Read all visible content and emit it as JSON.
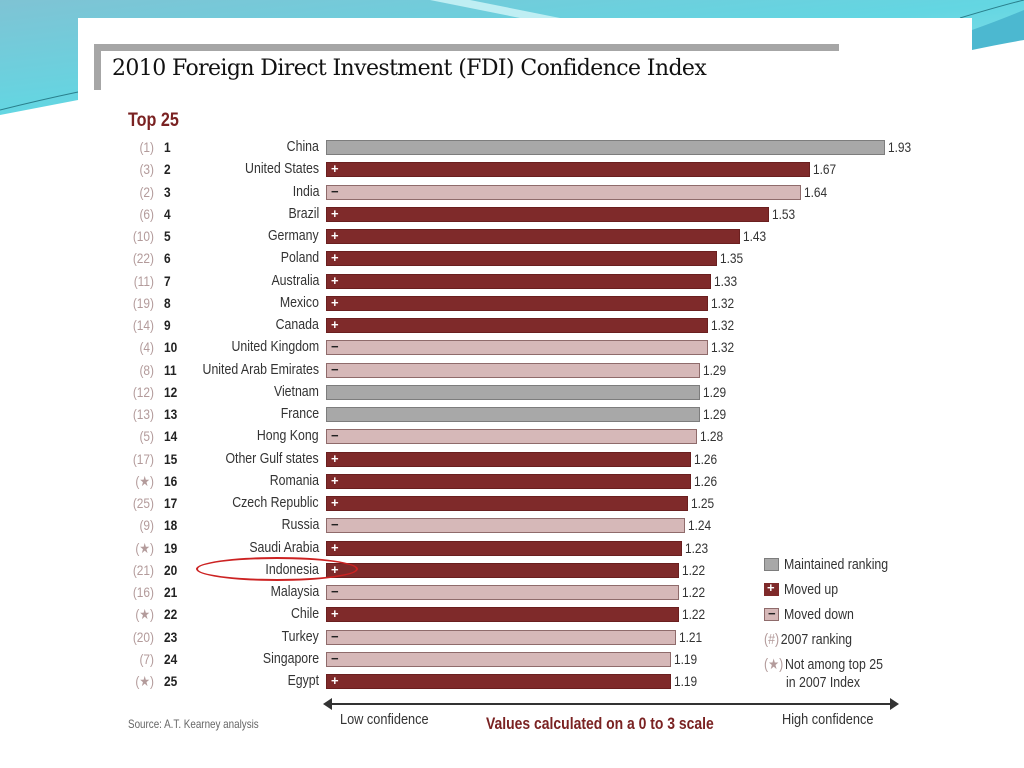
{
  "slide": {
    "title": "2010 Foreign Direct Investment (FDI) Confidence Index",
    "subtitle": "Top 25",
    "source": "Source: A.T. Kearney analysis",
    "colors": {
      "maintained": "#a8a8a8",
      "moved_up": "#7f2a2a",
      "moved_down": "#d6b8b8",
      "accent": "#7a2222",
      "highlight": "#cc2222",
      "background_teal": "#6fd3e0"
    }
  },
  "chart_data": {
    "type": "bar",
    "orientation": "horizontal",
    "title": "2010 Foreign Direct Investment (FDI) Confidence Index",
    "subtitle": "Top 25",
    "xlabel": "Values calculated on a 0 to 3 scale",
    "axis_left_label": "Low confidence",
    "axis_right_label": "High confidence",
    "xlim": [
      0,
      3
    ],
    "grid": false,
    "legend_position": "bottom-right",
    "highlighted_category": "Indonesia",
    "rows": [
      {
        "rank": "1",
        "prev": "(1)",
        "country": "China",
        "value": 1.93,
        "status": "maintained"
      },
      {
        "rank": "2",
        "prev": "(3)",
        "country": "United States",
        "value": 1.67,
        "status": "up"
      },
      {
        "rank": "3",
        "prev": "(2)",
        "country": "India",
        "value": 1.64,
        "status": "down"
      },
      {
        "rank": "4",
        "prev": "(6)",
        "country": "Brazil",
        "value": 1.53,
        "status": "up"
      },
      {
        "rank": "5",
        "prev": "(10)",
        "country": "Germany",
        "value": 1.43,
        "status": "up"
      },
      {
        "rank": "6",
        "prev": "(22)",
        "country": "Poland",
        "value": 1.35,
        "status": "up"
      },
      {
        "rank": "7",
        "prev": "(11)",
        "country": "Australia",
        "value": 1.33,
        "status": "up"
      },
      {
        "rank": "8",
        "prev": "(19)",
        "country": "Mexico",
        "value": 1.32,
        "status": "up"
      },
      {
        "rank": "9",
        "prev": "(14)",
        "country": "Canada",
        "value": 1.32,
        "status": "up"
      },
      {
        "rank": "10",
        "prev": "(4)",
        "country": "United Kingdom",
        "value": 1.32,
        "status": "down"
      },
      {
        "rank": "11",
        "prev": "(8)",
        "country": "United Arab Emirates",
        "value": 1.29,
        "status": "down"
      },
      {
        "rank": "12",
        "prev": "(12)",
        "country": "Vietnam",
        "value": 1.29,
        "status": "maintained"
      },
      {
        "rank": "13",
        "prev": "(13)",
        "country": "France",
        "value": 1.29,
        "status": "maintained"
      },
      {
        "rank": "14",
        "prev": "(5)",
        "country": "Hong Kong",
        "value": 1.28,
        "status": "down"
      },
      {
        "rank": "15",
        "prev": "(17)",
        "country": "Other Gulf states",
        "value": 1.26,
        "status": "up"
      },
      {
        "rank": "16",
        "prev": "(★)",
        "country": "Romania",
        "value": 1.26,
        "status": "up"
      },
      {
        "rank": "17",
        "prev": "(25)",
        "country": "Czech Republic",
        "value": 1.25,
        "status": "up"
      },
      {
        "rank": "18",
        "prev": "(9)",
        "country": "Russia",
        "value": 1.24,
        "status": "down"
      },
      {
        "rank": "19",
        "prev": "(★)",
        "country": "Saudi Arabia",
        "value": 1.23,
        "status": "up"
      },
      {
        "rank": "20",
        "prev": "(21)",
        "country": "Indonesia",
        "value": 1.22,
        "status": "up"
      },
      {
        "rank": "21",
        "prev": "(16)",
        "country": "Malaysia",
        "value": 1.22,
        "status": "down"
      },
      {
        "rank": "22",
        "prev": "(★)",
        "country": "Chile",
        "value": 1.22,
        "status": "up"
      },
      {
        "rank": "23",
        "prev": "(20)",
        "country": "Turkey",
        "value": 1.21,
        "status": "down"
      },
      {
        "rank": "24",
        "prev": "(7)",
        "country": "Singapore",
        "value": 1.19,
        "status": "down"
      },
      {
        "rank": "25",
        "prev": "(★)",
        "country": "Egypt",
        "value": 1.19,
        "status": "up"
      }
    ],
    "categories": [
      "China",
      "United States",
      "India",
      "Brazil",
      "Germany",
      "Poland",
      "Australia",
      "Mexico",
      "Canada",
      "United Kingdom",
      "United Arab Emirates",
      "Vietnam",
      "France",
      "Hong Kong",
      "Other Gulf states",
      "Romania",
      "Czech Republic",
      "Russia",
      "Saudi Arabia",
      "Indonesia",
      "Malaysia",
      "Chile",
      "Turkey",
      "Singapore",
      "Egypt"
    ],
    "values": [
      1.93,
      1.67,
      1.64,
      1.53,
      1.43,
      1.35,
      1.33,
      1.32,
      1.32,
      1.32,
      1.29,
      1.29,
      1.29,
      1.28,
      1.26,
      1.26,
      1.25,
      1.24,
      1.23,
      1.22,
      1.22,
      1.22,
      1.21,
      1.19,
      1.19
    ],
    "legend": [
      {
        "key": "maintained",
        "symbol": "",
        "label": "Maintained ranking"
      },
      {
        "key": "up",
        "symbol": "+",
        "label": "Moved up"
      },
      {
        "key": "down",
        "symbol": "−",
        "label": "Moved down"
      },
      {
        "key": "prev",
        "symbol": "(#)",
        "label": "2007 ranking"
      },
      {
        "key": "star",
        "symbol": "(★)",
        "label": "Not among top 25",
        "label2": "in 2007 Index"
      }
    ],
    "status_marks": {
      "up": "+",
      "down": "−",
      "maintained": ""
    }
  }
}
